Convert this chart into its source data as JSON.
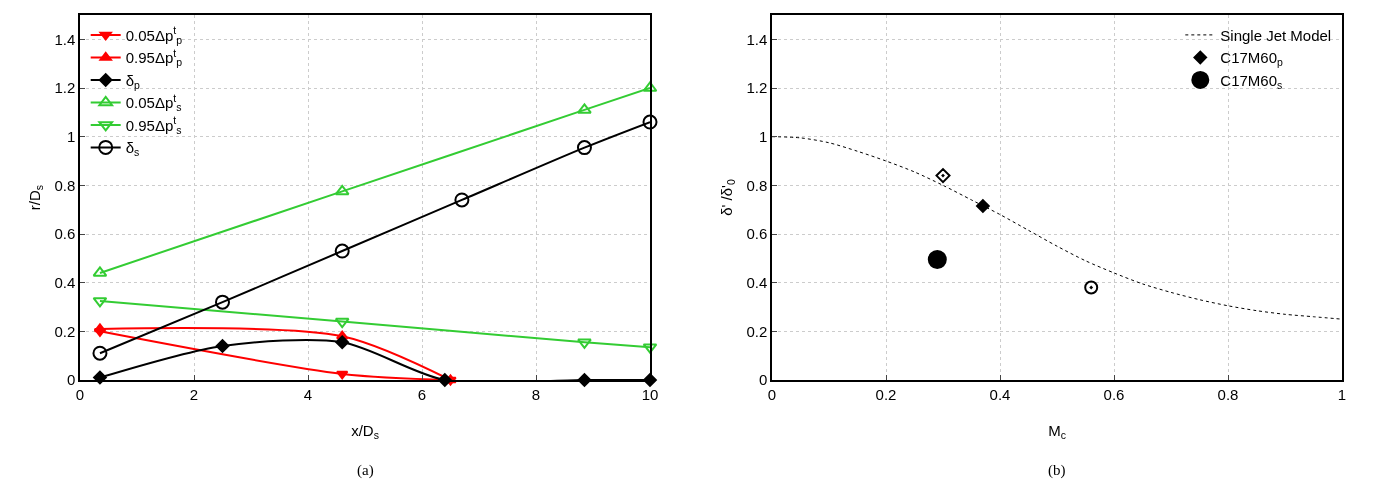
{
  "chart_data": [
    {
      "type": "line",
      "xlabel": "x/D$_{s}$",
      "ylabel": "r/D$_{s}$",
      "xlim": [
        0,
        10
      ],
      "ylim": [
        0,
        1.5
      ],
      "xticks": [
        0,
        2,
        4,
        6,
        8,
        10
      ],
      "yticks": [
        0,
        0.2,
        0.4,
        0.6,
        0.8,
        1,
        1.2,
        1.4
      ],
      "grid": true,
      "legend": "top left",
      "annotations": [
        "(a)"
      ],
      "series": [
        {
          "name": "0.05Δp$^{t}$$_{p}$",
          "color": "#ff0000",
          "marker": "triangle-down",
          "x": [
            0.35,
            4.6,
            6.5
          ],
          "values": [
            0.2,
            0.025,
            0
          ]
        },
        {
          "name": "0.95Δp$^{t}$$_{p}$",
          "color": "#ff0000",
          "marker": "triangle",
          "x": [
            0.35,
            4.6,
            6.5
          ],
          "values": [
            0.21,
            0.18,
            0
          ]
        },
        {
          "name": "δ$_{p}$",
          "color": "#000000",
          "marker": "diamond",
          "x": [
            0.35,
            2.5,
            4.6,
            6.4,
            8.85,
            10
          ],
          "values": [
            0.01,
            0.14,
            0.155,
            0,
            0,
            0
          ]
        },
        {
          "name": "0.05Δp$^{t}$$_{s}$",
          "color": "#33cc33",
          "marker": "triangle-open",
          "x": [
            0.35,
            4.6,
            8.85,
            10
          ],
          "values": [
            0.44,
            0.775,
            1.11,
            1.2
          ]
        },
        {
          "name": "0.95Δp$^{t}$$_{s}$",
          "color": "#33cc33",
          "marker": "triangle-down-open",
          "x": [
            0.35,
            4.6,
            8.85,
            10
          ],
          "values": [
            0.325,
            0.24,
            0.155,
            0.135
          ]
        },
        {
          "name": "δ$_{s}$",
          "color": "#000000",
          "marker": "circle-open",
          "x": [
            0.35,
            2.5,
            4.6,
            6.7,
            8.85,
            10
          ],
          "values": [
            0.11,
            0.32,
            0.53,
            0.74,
            0.955,
            1.06
          ]
        }
      ]
    },
    {
      "type": "scatter",
      "xlabel": "M$_{c}$",
      "ylabel": "δ' /δ'$_{0}$",
      "xlim": [
        0,
        1
      ],
      "ylim": [
        0,
        1.5
      ],
      "xticks": [
        0,
        0.2,
        0.4,
        0.6,
        0.8,
        1
      ],
      "yticks": [
        0,
        0.2,
        0.4,
        0.6,
        0.8,
        1,
        1.2,
        1.4
      ],
      "grid": true,
      "legend": "top right",
      "annotations": [
        "(b)"
      ],
      "series": [
        {
          "name": "Single Jet Model",
          "type": "line",
          "line_style": "dotted",
          "marker": "none",
          "color": "#000000",
          "x": [
            0,
            0.05,
            0.1,
            0.15,
            0.2,
            0.25,
            0.3,
            0.35,
            0.4,
            0.45,
            0.5,
            0.55,
            0.6,
            0.65,
            0.7,
            0.75,
            0.8,
            0.85,
            0.9,
            0.95,
            1
          ],
          "values": [
            1,
            0.995,
            0.975,
            0.94,
            0.9,
            0.855,
            0.8,
            0.74,
            0.68,
            0.615,
            0.55,
            0.49,
            0.44,
            0.395,
            0.36,
            0.33,
            0.305,
            0.285,
            0.27,
            0.26,
            0.25
          ]
        },
        {
          "name": "C17M60$_{p}$",
          "color": "#000000",
          "marker": "diamond",
          "x": [
            0.37
          ],
          "values": [
            0.715
          ]
        },
        {
          "name": "C17M60$_{s}$",
          "color": "#000000",
          "marker": "circle-large",
          "x": [
            0.29
          ],
          "values": [
            0.495
          ]
        },
        {
          "color": "#000000",
          "marker": "diamond-dot",
          "x": [
            0.3
          ],
          "values": [
            0.84
          ]
        },
        {
          "color": "#000000",
          "marker": "circle-dot",
          "x": [
            0.56
          ],
          "values": [
            0.38
          ]
        }
      ]
    }
  ]
}
